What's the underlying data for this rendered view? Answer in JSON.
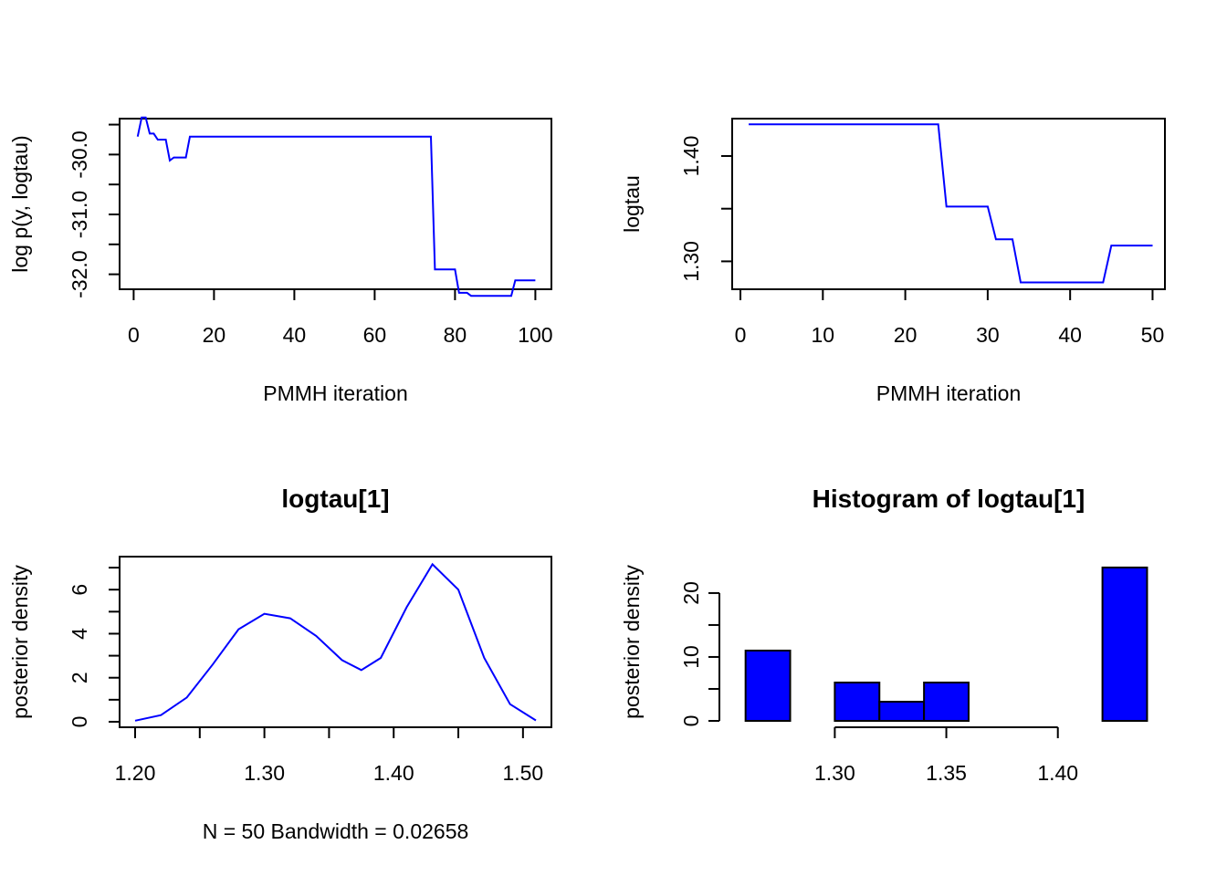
{
  "chart_data": [
    {
      "type": "line",
      "title": "",
      "xlabel": "PMMH iteration",
      "ylabel": "log p(y, logtau)",
      "xlim": [
        -3.5,
        104
      ],
      "ylim": [
        -32.25,
        -29.4
      ],
      "xticks": [
        0,
        20,
        40,
        60,
        80,
        100
      ],
      "yticks": [
        -32.0,
        -31.5,
        -31.0,
        -30.5,
        -30.0,
        -29.5
      ],
      "ytick_labels": [
        "-32.0",
        "",
        "-31.0",
        "",
        "-30.0",
        ""
      ],
      "color": "#0000ff",
      "points": [
        [
          1,
          -29.7
        ],
        [
          2,
          -29.38
        ],
        [
          3,
          -29.38
        ],
        [
          4,
          -29.65
        ],
        [
          5,
          -29.65
        ],
        [
          6,
          -29.75
        ],
        [
          7,
          -29.75
        ],
        [
          8,
          -29.75
        ],
        [
          9,
          -30.1
        ],
        [
          10,
          -30.05
        ],
        [
          11,
          -30.05
        ],
        [
          12,
          -30.05
        ],
        [
          13,
          -30.05
        ],
        [
          14,
          -29.7
        ],
        [
          74,
          -29.7
        ],
        [
          75,
          -31.92
        ],
        [
          80,
          -31.92
        ],
        [
          81,
          -32.31
        ],
        [
          83,
          -32.31
        ],
        [
          84,
          -32.36
        ],
        [
          94,
          -32.36
        ],
        [
          95,
          -32.1
        ],
        [
          100,
          -32.1
        ]
      ]
    },
    {
      "type": "line",
      "title": "",
      "xlabel": "PMMH iteration",
      "ylabel": "logtau",
      "xlim": [
        -1,
        51.5
      ],
      "ylim": [
        1.2735,
        1.4355
      ],
      "xticks": [
        0,
        10,
        20,
        30,
        40,
        50
      ],
      "yticks": [
        1.3,
        1.35,
        1.4
      ],
      "ytick_labels": [
        "1.30",
        "",
        "1.40"
      ],
      "color": "#0000ff",
      "points": [
        [
          1,
          1.43
        ],
        [
          24,
          1.43
        ],
        [
          25,
          1.352
        ],
        [
          30,
          1.352
        ],
        [
          31,
          1.321
        ],
        [
          33,
          1.321
        ],
        [
          34,
          1.28
        ],
        [
          44,
          1.28
        ],
        [
          45,
          1.315
        ],
        [
          50,
          1.315
        ]
      ]
    },
    {
      "type": "line",
      "title": "logtau[1]",
      "xlabel": "N = 50   Bandwidth = 0.02658",
      "ylabel": "posterior density",
      "xlim": [
        1.188,
        1.522
      ],
      "ylim": [
        -0.25,
        7.5
      ],
      "xticks": [
        1.2,
        1.25,
        1.3,
        1.35,
        1.4,
        1.45,
        1.5
      ],
      "xtick_labels": [
        "1.20",
        "",
        "1.30",
        "",
        "1.40",
        "",
        "1.50"
      ],
      "yticks": [
        0,
        1,
        2,
        3,
        4,
        5,
        6,
        7
      ],
      "ytick_labels": [
        "0",
        "",
        "2",
        "",
        "4",
        "",
        "6",
        ""
      ],
      "color": "#0000ff",
      "points": [
        [
          1.2,
          0.05
        ],
        [
          1.22,
          0.3
        ],
        [
          1.24,
          1.1
        ],
        [
          1.26,
          2.6
        ],
        [
          1.28,
          4.2
        ],
        [
          1.3,
          4.9
        ],
        [
          1.32,
          4.7
        ],
        [
          1.34,
          3.9
        ],
        [
          1.36,
          2.8
        ],
        [
          1.375,
          2.35
        ],
        [
          1.39,
          2.9
        ],
        [
          1.41,
          5.2
        ],
        [
          1.43,
          7.15
        ],
        [
          1.45,
          6.0
        ],
        [
          1.47,
          2.9
        ],
        [
          1.49,
          0.8
        ],
        [
          1.51,
          0.06
        ]
      ]
    },
    {
      "type": "bar",
      "title": "Histogram of logtau[1]",
      "xlabel": "",
      "ylabel": "posterior density",
      "xlim": [
        1.254,
        1.448
      ],
      "ylim": [
        -1.0,
        25.7
      ],
      "xticks": [
        1.3,
        1.35,
        1.4
      ],
      "xtick_labels": [
        "1.30",
        "1.35",
        "1.40"
      ],
      "yticks": [
        0,
        5,
        10,
        15,
        20
      ],
      "ytick_labels": [
        "0",
        "",
        "10",
        "",
        "20"
      ],
      "color": "#0000ff",
      "bins": [
        [
          1.26,
          1.28,
          11
        ],
        [
          1.28,
          1.3,
          0
        ],
        [
          1.3,
          1.32,
          6
        ],
        [
          1.32,
          1.34,
          3
        ],
        [
          1.34,
          1.36,
          6
        ],
        [
          1.36,
          1.38,
          0
        ],
        [
          1.38,
          1.4,
          0
        ],
        [
          1.4,
          1.42,
          0
        ],
        [
          1.42,
          1.44,
          24
        ]
      ]
    }
  ]
}
